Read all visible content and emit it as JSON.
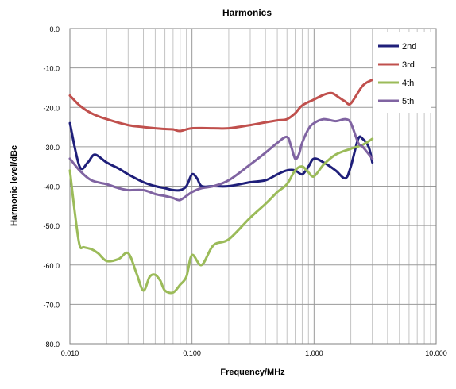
{
  "chart_data": {
    "type": "line",
    "title": "Harmonics",
    "xlabel": "Frequency/MHz",
    "ylabel": "Harmonic level/dBc",
    "x_scale": "log",
    "xlim": [
      0.01,
      10
    ],
    "ylim": [
      -80,
      0
    ],
    "x_ticks": [
      "0.010",
      "0.100",
      "1.000",
      "10.000"
    ],
    "y_ticks": [
      "0.0",
      "-10.0",
      "-20.0",
      "-30.0",
      "-40.0",
      "-50.0",
      "-60.0",
      "-70.0",
      "-80.0"
    ],
    "grid": true,
    "legend_position": "top-right",
    "series": [
      {
        "name": "2nd",
        "color": "#1f1f7a",
        "x": [
          0.01,
          0.012,
          0.014,
          0.016,
          0.02,
          0.025,
          0.03,
          0.04,
          0.05,
          0.06,
          0.07,
          0.08,
          0.09,
          0.1,
          0.11,
          0.12,
          0.15,
          0.2,
          0.3,
          0.4,
          0.5,
          0.6,
          0.7,
          0.8,
          0.9,
          1.0,
          1.2,
          1.5,
          1.8,
          2.0,
          2.3,
          2.5,
          2.8,
          3.0
        ],
        "values": [
          -24,
          -35,
          -34,
          -32,
          -34,
          -35.5,
          -37,
          -39,
          -40,
          -40.5,
          -41,
          -41,
          -40,
          -37,
          -38,
          -40,
          -40,
          -40,
          -39,
          -38.5,
          -37,
          -36,
          -36,
          -37,
          -35,
          -33,
          -34,
          -36,
          -38,
          -35,
          -28,
          -28,
          -30,
          -34
        ]
      },
      {
        "name": "3rd",
        "color": "#c0504d",
        "x": [
          0.01,
          0.012,
          0.015,
          0.02,
          0.03,
          0.04,
          0.05,
          0.06,
          0.07,
          0.08,
          0.1,
          0.15,
          0.2,
          0.3,
          0.4,
          0.5,
          0.6,
          0.7,
          0.8,
          1.0,
          1.2,
          1.4,
          1.6,
          1.8,
          2.0,
          2.5,
          3.0
        ],
        "values": [
          -17,
          -19.5,
          -21.5,
          -23,
          -24.5,
          -25,
          -25.3,
          -25.5,
          -25.6,
          -26,
          -25.3,
          -25.3,
          -25.3,
          -24.5,
          -23.8,
          -23.3,
          -23,
          -21.5,
          -19.5,
          -18,
          -16.8,
          -16.4,
          -17.5,
          -18.5,
          -19,
          -14.5,
          -13
        ]
      },
      {
        "name": "4th",
        "color": "#9bbb59",
        "x": [
          0.01,
          0.011,
          0.012,
          0.013,
          0.015,
          0.017,
          0.02,
          0.025,
          0.03,
          0.035,
          0.04,
          0.045,
          0.05,
          0.055,
          0.06,
          0.07,
          0.08,
          0.09,
          0.1,
          0.12,
          0.15,
          0.2,
          0.3,
          0.4,
          0.5,
          0.6,
          0.7,
          0.8,
          0.9,
          1.0,
          1.2,
          1.5,
          2.0,
          2.5,
          3.0
        ],
        "values": [
          -36,
          -47,
          -55,
          -55.5,
          -56,
          -57,
          -59,
          -58.5,
          -57,
          -62,
          -66.5,
          -63,
          -62.5,
          -64,
          -66.5,
          -67,
          -65,
          -63,
          -57.5,
          -60,
          -55,
          -53.5,
          -48,
          -44.5,
          -41.5,
          -39.5,
          -36,
          -35,
          -36.5,
          -37.5,
          -34.5,
          -32,
          -30.5,
          -29.5,
          -28
        ]
      },
      {
        "name": "5th",
        "color": "#8064a2",
        "x": [
          0.01,
          0.012,
          0.015,
          0.02,
          0.025,
          0.03,
          0.04,
          0.05,
          0.06,
          0.07,
          0.08,
          0.1,
          0.12,
          0.15,
          0.2,
          0.3,
          0.4,
          0.5,
          0.6,
          0.65,
          0.7,
          0.75,
          0.8,
          0.9,
          1.0,
          1.2,
          1.5,
          1.8,
          2.0,
          2.3,
          2.5,
          3.0
        ],
        "values": [
          -33,
          -36,
          -38.5,
          -39.5,
          -40.5,
          -41,
          -41,
          -42,
          -42.5,
          -43,
          -43.5,
          -41.5,
          -40.5,
          -40,
          -38.5,
          -34.5,
          -31.5,
          -29,
          -27.5,
          -30,
          -33,
          -32,
          -29,
          -25.5,
          -24,
          -23,
          -23.5,
          -23,
          -24,
          -29,
          -30,
          -33
        ]
      }
    ]
  }
}
